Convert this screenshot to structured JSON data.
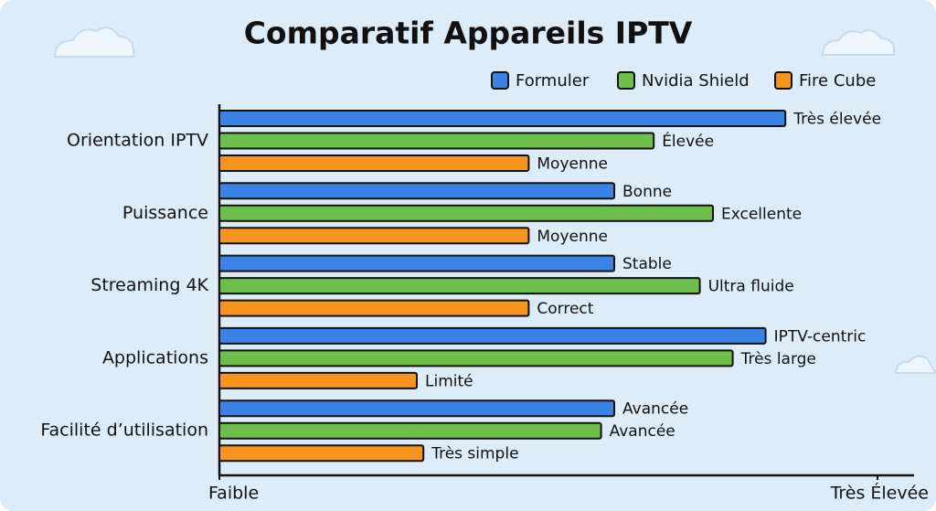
{
  "chart_data": {
    "type": "bar",
    "orientation": "horizontal",
    "title": "Comparatif Appareils IPTV",
    "categories": [
      "Orientation IPTV",
      "Puissance",
      "Streaming 4K",
      "Applications",
      "Facilité d’utilisation"
    ],
    "series": [
      {
        "name": "Formuler",
        "color": "#3b82e6",
        "values": [
          86,
          60,
          60,
          83,
          60
        ],
        "value_labels": [
          "Très élevée",
          "Bonne",
          "Stable",
          "IPTV-centric",
          "Avancée"
        ]
      },
      {
        "name": "Nvidia Shield",
        "color": "#6cc04a",
        "values": [
          66,
          75,
          73,
          78,
          58
        ],
        "value_labels": [
          "Élevée",
          "Excellente",
          "Ultra fluide",
          "Très large",
          "Avancée"
        ]
      },
      {
        "name": "Fire Cube",
        "color": "#f7941d",
        "values": [
          47,
          47,
          47,
          30,
          31
        ],
        "value_labels": [
          "Moyenne",
          "Moyenne",
          "Correct",
          "Limité",
          "Très simple"
        ]
      }
    ],
    "xlim": [
      0,
      100
    ],
    "xticks": [
      {
        "value": 0,
        "label": "Faible"
      },
      {
        "value": 100,
        "label": "Très Élevée"
      }
    ],
    "legend": "top-right"
  }
}
